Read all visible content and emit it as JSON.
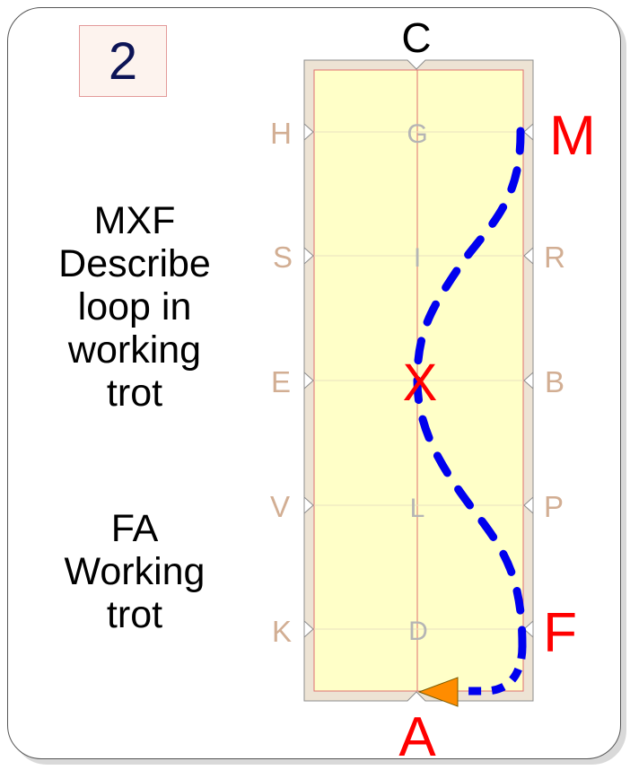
{
  "test_number": "2",
  "movement1": {
    "lines": [
      "MXF",
      "Describe",
      "loop in",
      "working",
      "trot"
    ]
  },
  "movement2": {
    "lines": [
      "FA",
      "Working",
      "trot"
    ]
  },
  "letters": {
    "C": "C",
    "A": "A",
    "H": "H",
    "S": "S",
    "E": "E",
    "V": "V",
    "K": "K",
    "M": "M",
    "R": "R",
    "B": "B",
    "P": "P",
    "F": "F",
    "G": "G",
    "I": "I",
    "X": "X",
    "L": "L",
    "D": "D"
  },
  "colors": {
    "arena_fill": "#ffffc8",
    "arena_border": "#ede3d4",
    "inner_line": "#e07070",
    "letter_tan": "#d2ae93",
    "letter_grey": "#b5b5b5",
    "highlight": "#ff0000",
    "path": "#0000ee",
    "arrow": "#ff8c00"
  }
}
